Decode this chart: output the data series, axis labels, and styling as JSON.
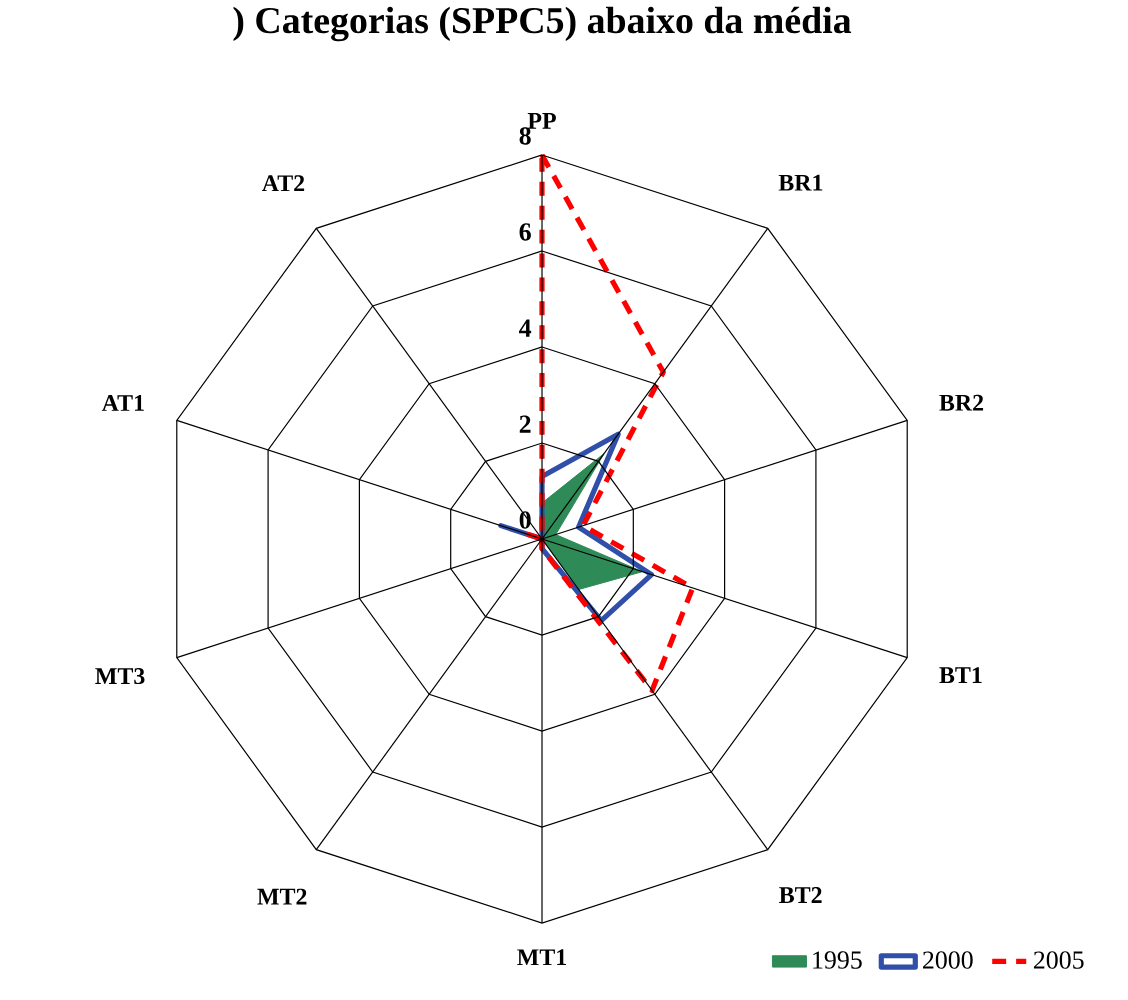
{
  "chart_data": {
    "type": "radar",
    "title": ") Categorias (SPPC5) abaixo da média",
    "categories": [
      "PP",
      "BR1",
      "BR2",
      "BT1",
      "BT2",
      "MT1",
      "MT2",
      "MT3",
      "AT1",
      "AT2"
    ],
    "ylim": [
      0,
      8
    ],
    "yticks": [
      0,
      2,
      4,
      6,
      8
    ],
    "legend": "bottom right",
    "marker": "none",
    "series": [
      {
        "name": "1995",
        "color": "#2e8b57",
        "values": [
          0.75,
          2.2,
          0.3,
          2.2,
          1.3,
          0,
          0,
          0,
          0,
          0
        ]
      },
      {
        "name": "2000",
        "color": "#2f4fa8",
        "line_style": "solid",
        "values": [
          1.3,
          2.7,
          0.8,
          2.4,
          2.1,
          0.2,
          0,
          0,
          0.9,
          0
        ]
      },
      {
        "name": "2005",
        "color": "#ff0000",
        "line_style": "dashed",
        "values": [
          8,
          4.3,
          0.9,
          3.3,
          3.9,
          0.2,
          0,
          0,
          0.3,
          0
        ]
      }
    ]
  }
}
